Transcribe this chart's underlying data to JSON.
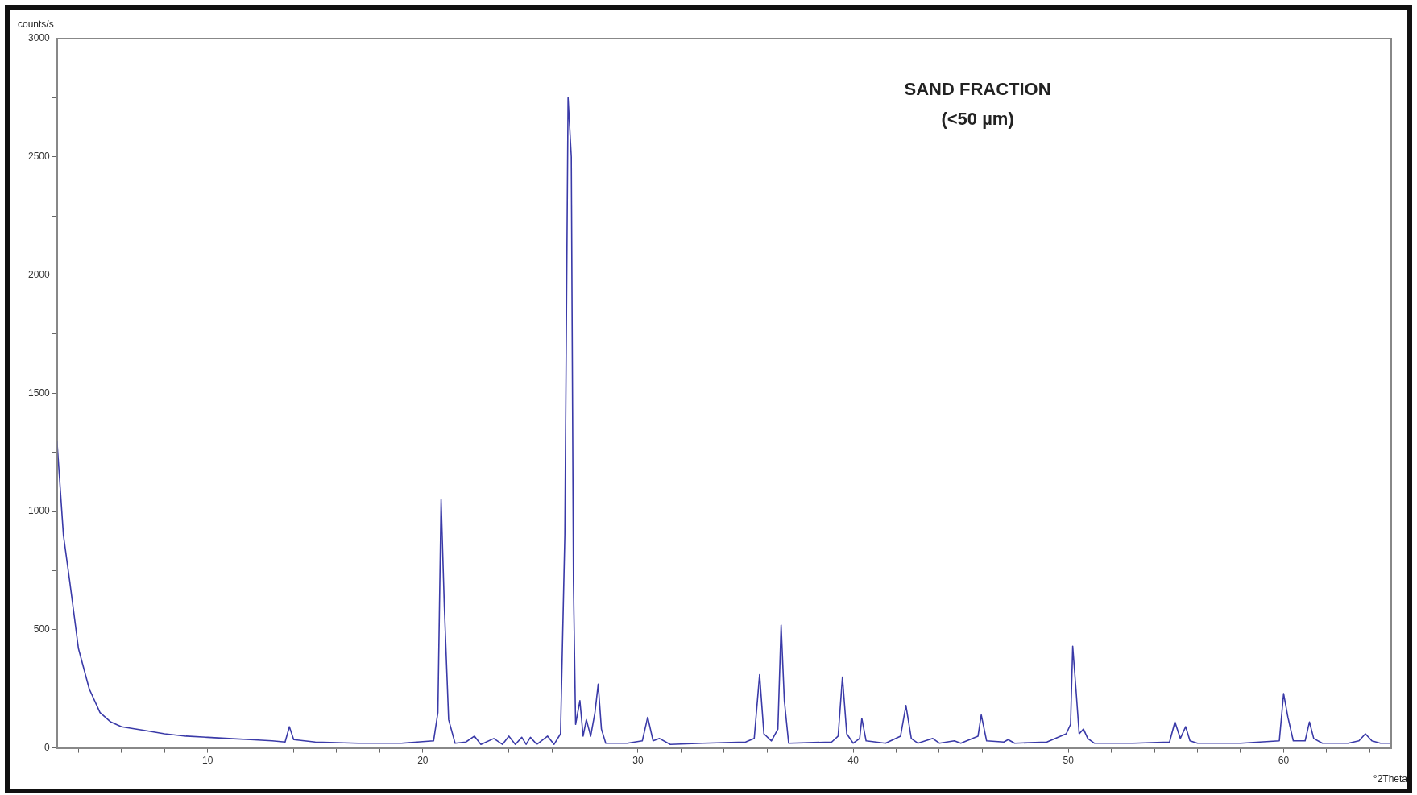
{
  "chart_data": {
    "type": "line",
    "title": "SAND FRACTION",
    "subtitle": "(<50 µm)",
    "xlabel": "°2Theta",
    "ylabel": "counts/s",
    "xlim": [
      3,
      65
    ],
    "xticks": [
      {
        "value": 4,
        "label": null
      },
      {
        "value": 6,
        "label": null
      },
      {
        "value": 8,
        "label": null
      },
      10,
      {
        "value": 12,
        "label": null
      },
      {
        "value": 14,
        "label": null
      },
      {
        "value": 16,
        "label": null
      },
      {
        "value": 18,
        "label": null
      },
      20,
      {
        "value": 22,
        "label": null
      },
      {
        "value": 24,
        "label": null
      },
      {
        "value": 26,
        "label": null
      },
      {
        "value": 28,
        "label": null
      },
      30,
      {
        "value": 32,
        "label": null
      },
      {
        "value": 34,
        "label": null
      },
      {
        "value": 36,
        "label": null
      },
      {
        "value": 38,
        "label": null
      },
      40,
      {
        "value": 42,
        "label": null
      },
      {
        "value": 44,
        "label": null
      },
      {
        "value": 46,
        "label": null
      },
      {
        "value": 48,
        "label": null
      },
      50,
      {
        "value": 52,
        "label": null
      },
      {
        "value": 54,
        "label": null
      },
      {
        "value": 56,
        "label": null
      },
      {
        "value": 58,
        "label": null
      },
      60,
      {
        "value": 62,
        "label": null
      },
      {
        "value": 64,
        "label": null
      }
    ],
    "ylim": [
      0,
      3000
    ],
    "yticks": [
      0,
      {
        "value": 250,
        "label": null
      },
      500,
      {
        "value": 750,
        "label": null
      },
      1000,
      {
        "value": 1250,
        "label": null
      },
      1500,
      {
        "value": 1750,
        "label": null
      },
      2000,
      {
        "value": 2250,
        "label": null
      },
      2500,
      {
        "value": 2750,
        "label": null
      },
      3000
    ],
    "grid": false,
    "legend": false,
    "marker": "none",
    "line_style": "solid",
    "series": [
      {
        "color": "#3a3aa8",
        "x": [
          3.0,
          3.3,
          3.6,
          4.0,
          4.5,
          5.0,
          5.5,
          6,
          7,
          8,
          9,
          10,
          11,
          12,
          13,
          13.6,
          13.8,
          14.0,
          15,
          17,
          19,
          20.5,
          20.7,
          20.85,
          21.0,
          21.2,
          21.5,
          22,
          22.4,
          22.7,
          23.3,
          23.7,
          24.0,
          24.3,
          24.6,
          24.8,
          25.0,
          25.3,
          25.8,
          26.1,
          26.4,
          26.6,
          26.75,
          26.9,
          27.0,
          27.1,
          27.3,
          27.45,
          27.6,
          27.8,
          28.0,
          28.15,
          28.3,
          28.5,
          29.5,
          30.2,
          30.45,
          30.7,
          31.0,
          31.5,
          33,
          35,
          35.4,
          35.65,
          35.85,
          36.2,
          36.5,
          36.65,
          36.8,
          37.0,
          39,
          39.3,
          39.5,
          39.7,
          40.0,
          40.3,
          40.4,
          40.6,
          41.5,
          42.2,
          42.45,
          42.7,
          43.0,
          43.7,
          44.0,
          44.7,
          45.0,
          45.8,
          45.95,
          46.2,
          47,
          47.2,
          47.5,
          49,
          49.9,
          50.1,
          50.2,
          50.35,
          50.5,
          50.7,
          50.9,
          51.2,
          53,
          54.7,
          54.95,
          55.2,
          55.45,
          55.65,
          56,
          58,
          59.8,
          60.0,
          60.2,
          60.45,
          61.0,
          61.2,
          61.4,
          61.8,
          63,
          63.5,
          63.8,
          64.1,
          64.5,
          65
        ],
        "values": [
          1300,
          900,
          700,
          420,
          250,
          150,
          110,
          90,
          75,
          60,
          50,
          45,
          40,
          35,
          30,
          25,
          90,
          35,
          25,
          20,
          20,
          30,
          150,
          1050,
          600,
          120,
          20,
          25,
          50,
          15,
          40,
          15,
          50,
          15,
          45,
          15,
          45,
          15,
          50,
          15,
          60,
          900,
          2750,
          2500,
          700,
          100,
          200,
          50,
          120,
          50,
          150,
          270,
          80,
          20,
          20,
          30,
          130,
          30,
          40,
          15,
          20,
          25,
          40,
          310,
          60,
          30,
          80,
          520,
          200,
          20,
          25,
          50,
          300,
          60,
          20,
          40,
          125,
          30,
          20,
          50,
          180,
          40,
          20,
          40,
          20,
          30,
          20,
          50,
          140,
          30,
          25,
          35,
          20,
          25,
          60,
          100,
          430,
          250,
          60,
          80,
          40,
          20,
          20,
          25,
          110,
          40,
          90,
          30,
          20,
          20,
          30,
          230,
          130,
          30,
          30,
          110,
          40,
          20,
          20,
          30,
          60,
          30,
          20,
          20
        ]
      }
    ]
  }
}
